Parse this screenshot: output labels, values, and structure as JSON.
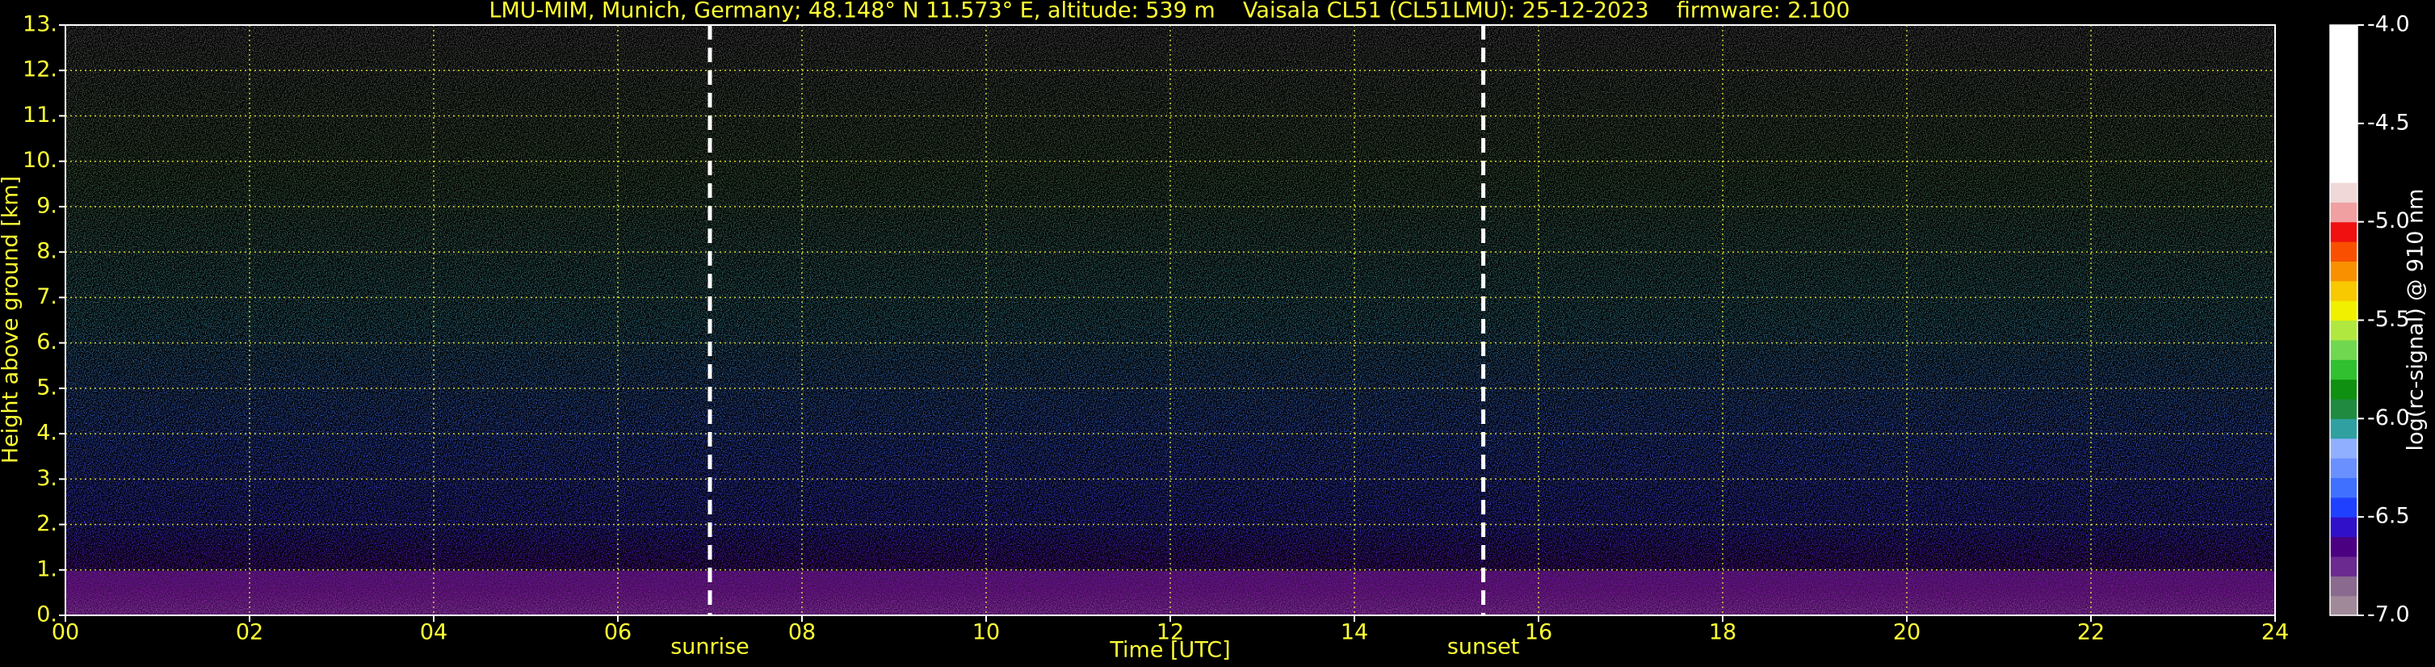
{
  "chart_data": {
    "type": "heatmap",
    "title": "LMU-MIM, Munich, Germany; 48.148° N 11.573° E, altitude: 539 m    Vaisala CL51 (CL51LMU): 25-12-2023    firmware: 2.100",
    "x_label": "Time [UTC]",
    "y_label": "Height above ground [km]",
    "xlim": [
      0,
      24
    ],
    "xticks": [
      {
        "value": 0,
        "label": "00"
      },
      {
        "value": 2,
        "label": "02"
      },
      {
        "value": 4,
        "label": "04"
      },
      {
        "value": 6,
        "label": "06"
      },
      {
        "value": 8,
        "label": "08"
      },
      {
        "value": 10,
        "label": "10"
      },
      {
        "value": 12,
        "label": "12"
      },
      {
        "value": 14,
        "label": "14"
      },
      {
        "value": 16,
        "label": "16"
      },
      {
        "value": 18,
        "label": "18"
      },
      {
        "value": 20,
        "label": "20"
      },
      {
        "value": 22,
        "label": "22"
      },
      {
        "value": 24,
        "label": "24"
      }
    ],
    "ylim": [
      0,
      13
    ],
    "yticks": [
      {
        "value": 0,
        "label": "0."
      },
      {
        "value": 1,
        "label": "1."
      },
      {
        "value": 2,
        "label": "2."
      },
      {
        "value": 3,
        "label": "3."
      },
      {
        "value": 4,
        "label": "4."
      },
      {
        "value": 5,
        "label": "5."
      },
      {
        "value": 6,
        "label": "6."
      },
      {
        "value": 7,
        "label": "7."
      },
      {
        "value": 8,
        "label": "8."
      },
      {
        "value": 9,
        "label": "9."
      },
      {
        "value": 10,
        "label": "10."
      },
      {
        "value": 11,
        "label": "11."
      },
      {
        "value": 12,
        "label": "12."
      },
      {
        "value": 13,
        "label": "13."
      }
    ],
    "grid": true,
    "grid_color": "#ffff33",
    "annotations": [
      {
        "label": "sunrise",
        "x": 7.0
      },
      {
        "label": "sunset",
        "x": 15.4
      }
    ],
    "colorbar": {
      "label": "log(rc-signal) @ 910 nm",
      "lim": [
        -7,
        -4
      ],
      "ticks": [
        {
          "value": -7,
          "label": "-7.0"
        },
        {
          "value": -6.5,
          "label": "-6.5"
        },
        {
          "value": -6,
          "label": "-6.0"
        },
        {
          "value": -5.5,
          "label": "-5.5"
        },
        {
          "value": -5,
          "label": "-5.0"
        },
        {
          "value": -4.5,
          "label": "-4.5"
        },
        {
          "value": -4,
          "label": "-4.0"
        }
      ],
      "colors": [
        "#a08a9a",
        "#8a6a8e",
        "#6a2a90",
        "#4b0082",
        "#3010c8",
        "#2040ff",
        "#4070ff",
        "#6a90ff",
        "#90b0ff",
        "#30a0a0",
        "#208a40",
        "#109010",
        "#30c030",
        "#70d850",
        "#b0e840",
        "#f0f000",
        "#f8c800",
        "#f89000",
        "#f85000",
        "#f01010",
        "#f0a0a0",
        "#f0d8d8",
        "#ffffff",
        "#ffffff",
        "#ffffff",
        "#ffffff",
        "#ffffff",
        "#ffffff",
        "#ffffff",
        "#ffffff"
      ]
    }
  }
}
